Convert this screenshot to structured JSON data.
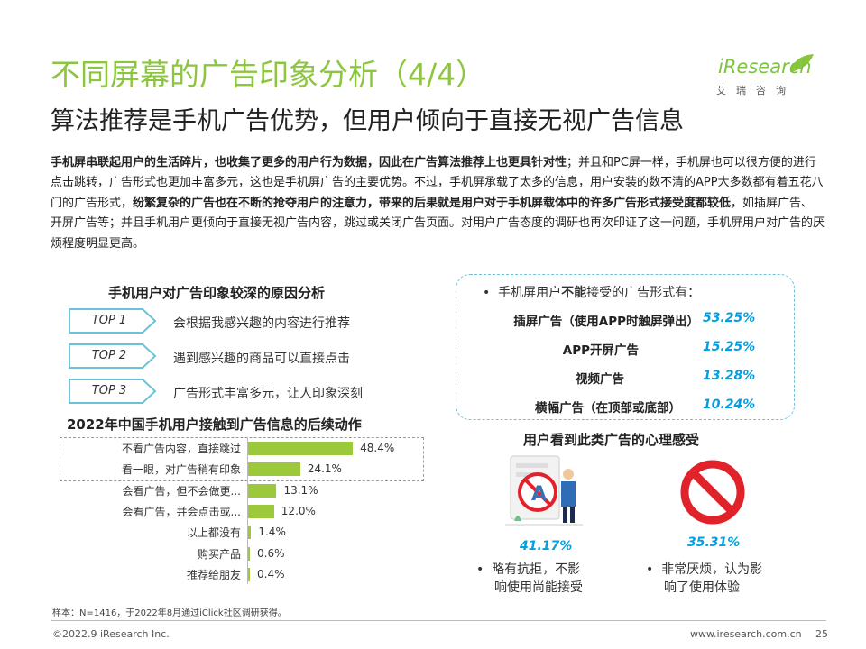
{
  "header": {
    "title": "不同屏幕的广告印象分析（4/4）",
    "subtitle": "算法推荐是手机广告优势，但用户倾向于直接无视广告信息"
  },
  "logo": {
    "word": "iResearch",
    "cn": "艾瑞咨询"
  },
  "intro": {
    "p1_bold": "手机屏串联起用户的生活碎片，也收集了更多的用户行为数据，因此在广告算法推荐上也更具针对性",
    "p2": "；并且和PC屏一样，手机屏也可以很方便的进行点击跳转，广告形式也更加丰富多元，这也是手机屏广告的主要优势。不过，手机屏承载了太多的信息，用户安装的数不清的APP大多数都有着五花八门的广告形式，",
    "p3_bold": "纷繁复杂的广告也在不断的抢夺用户的注意力，带来的后果就是用户对于手机屏载体中的许多广告形式接受度都较低",
    "p4": "，如插屏广告、开屏广告等；并且手机用户更倾向于直接无视广告内容，跳过或关闭广告页面。对用户广告态度的调研也再次印证了这一问题，手机屏用户对广告的厌烦程度明显更高。"
  },
  "reasons": {
    "title": "手机用户对广告印象较深的原因分析",
    "items": [
      {
        "tag": "TOP 1",
        "text": "会根据我感兴趣的内容进行推荐"
      },
      {
        "tag": "TOP 2",
        "text": "遇到感兴趣的商品可以直接点击"
      },
      {
        "tag": "TOP 3",
        "text": "广告形式丰富多元，让人印象深刻"
      }
    ]
  },
  "formats": {
    "heading_pre": "手机屏用户",
    "heading_bold": "不能",
    "heading_post": "接受的广告形式有：",
    "items": [
      {
        "name": "插屏广告（使用APP时触屏弹出）",
        "value": "53.25%"
      },
      {
        "name": "APP开屏广告",
        "value": "15.25%"
      },
      {
        "name": "视频广告",
        "value": "13.28%"
      },
      {
        "name": "横幅广告（在顶部或底部）",
        "value": "10.24%"
      }
    ]
  },
  "chart_data": {
    "type": "bar",
    "orientation": "horizontal",
    "title": "2022年中国手机用户接触到广告信息的后续动作",
    "categories": [
      "不看广告内容，直接跳过",
      "看一眼，对广告稍有印象",
      "会看广告，但不会做更...",
      "会看广告，并会点击或...",
      "以上都没有",
      "购买产品",
      "推荐给朋友"
    ],
    "values": [
      48.4,
      24.1,
      13.1,
      12.0,
      1.4,
      0.6,
      0.4
    ],
    "labels": [
      "48.4%",
      "24.1%",
      "13.1%",
      "12.0%",
      "1.4%",
      "0.6%",
      "0.4%"
    ],
    "unit": "%",
    "color": "#9cc93b",
    "xlim": [
      0,
      50
    ]
  },
  "feelings": {
    "title": "用户看到此类广告的心理感受",
    "left": {
      "pct": "41.17%",
      "line1": "略有抗拒，不影",
      "line2": "响使用尚能接受"
    },
    "right": {
      "pct": "35.31%",
      "line1": "非常厌烦，认为影",
      "line2": "响了使用体验"
    }
  },
  "note": "样本：N=1416，于2022年8月通过iClick社区调研获得。",
  "footer": {
    "left": "©2022.9 iResearch Inc.",
    "url": "www.iresearch.com.cn",
    "page": "25"
  },
  "colors": {
    "title_green": "#8cc63f",
    "accent_blue": "#00a0e0",
    "bar_green": "#9cc93b",
    "dash_blue": "#6cc3d8",
    "no_sign_red": "#e0222b"
  }
}
